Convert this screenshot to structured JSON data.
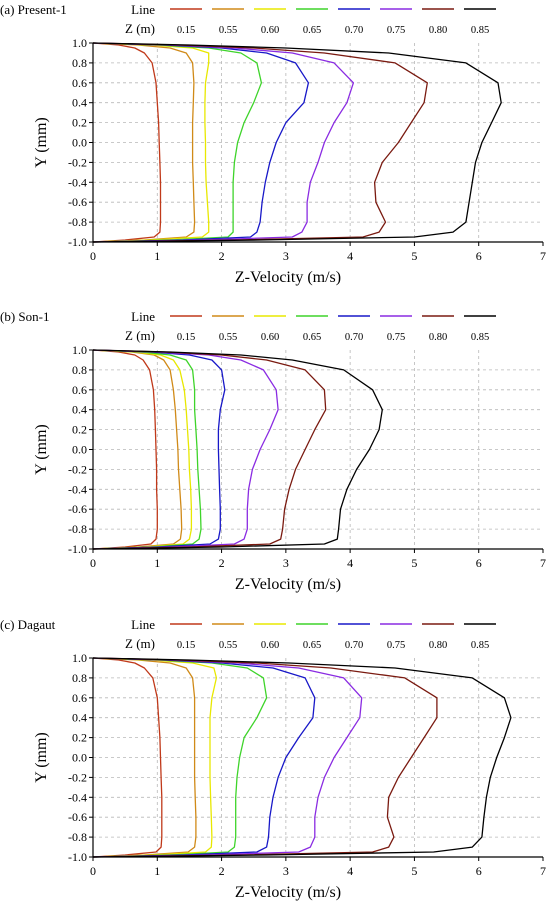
{
  "legend": {
    "line_title": "Line",
    "z_title": "Z (m)",
    "z_values": [
      "0.15",
      "0.55",
      "0.60",
      "0.65",
      "0.70",
      "0.75",
      "0.80",
      "0.85"
    ],
    "colors": [
      "#c0391a",
      "#d08a18",
      "#e8e800",
      "#3ed42a",
      "#1818c8",
      "#8a2be2",
      "#7a1a10",
      "#000000"
    ]
  },
  "chart_data": [
    {
      "panel": "(a) Present-1",
      "type": "line",
      "xlabel": "Z-Velocity (m/s)",
      "ylabel": "Y (mm)",
      "xlim": [
        0,
        7
      ],
      "ylim": [
        -1.0,
        1.0
      ],
      "x_ticks": [
        "0",
        "1",
        "2",
        "3",
        "4",
        "5",
        "6",
        "7"
      ],
      "y_ticks": [
        "1.0",
        "0.8",
        "0.6",
        "0.4",
        "0.2",
        "0.0",
        "-0.2",
        "-0.4",
        "-0.6",
        "-0.8",
        "-1.0"
      ],
      "grid": true,
      "series": [
        {
          "name": "0.15",
          "y": [
            1.0,
            0.98,
            0.95,
            0.9,
            0.8,
            0.6,
            0.4,
            0.2,
            0.0,
            -0.2,
            -0.4,
            -0.6,
            -0.8,
            -0.9,
            -0.95,
            -0.98,
            -1.0
          ],
          "x": [
            0,
            0.4,
            0.65,
            0.8,
            0.92,
            0.98,
            1.0,
            1.02,
            1.03,
            1.04,
            1.05,
            1.05,
            1.05,
            1.04,
            0.95,
            0.5,
            0
          ]
        },
        {
          "name": "0.55",
          "y": [
            1.0,
            0.98,
            0.95,
            0.9,
            0.8,
            0.6,
            0.4,
            0.2,
            0.0,
            -0.2,
            -0.4,
            -0.6,
            -0.8,
            -0.9,
            -0.95,
            -0.98,
            -1.0
          ],
          "x": [
            0,
            0.7,
            1.2,
            1.45,
            1.55,
            1.57,
            1.56,
            1.55,
            1.55,
            1.55,
            1.56,
            1.57,
            1.58,
            1.57,
            1.45,
            0.8,
            0
          ]
        },
        {
          "name": "0.60",
          "y": [
            1.0,
            0.98,
            0.95,
            0.9,
            0.8,
            0.6,
            0.4,
            0.2,
            0.0,
            -0.2,
            -0.4,
            -0.6,
            -0.8,
            -0.9,
            -0.95,
            -0.98,
            -1.0
          ],
          "x": [
            0,
            0.9,
            1.55,
            1.8,
            1.8,
            1.75,
            1.74,
            1.74,
            1.75,
            1.75,
            1.76,
            1.78,
            1.8,
            1.8,
            1.7,
            0.9,
            0
          ]
        },
        {
          "name": "0.65",
          "y": [
            1.0,
            0.98,
            0.95,
            0.9,
            0.8,
            0.6,
            0.4,
            0.2,
            0.0,
            -0.2,
            -0.4,
            -0.6,
            -0.8,
            -0.9,
            -0.95,
            -0.98,
            -1.0
          ],
          "x": [
            0,
            1.0,
            1.8,
            2.3,
            2.55,
            2.62,
            2.5,
            2.35,
            2.25,
            2.2,
            2.18,
            2.18,
            2.18,
            2.18,
            2.1,
            1.2,
            0
          ]
        },
        {
          "name": "0.70",
          "y": [
            1.0,
            0.98,
            0.95,
            0.9,
            0.8,
            0.6,
            0.4,
            0.2,
            0.0,
            -0.2,
            -0.4,
            -0.6,
            -0.8,
            -0.9,
            -0.95,
            -0.98,
            -1.0
          ],
          "x": [
            0,
            1.1,
            2.0,
            2.7,
            3.15,
            3.35,
            3.28,
            3.0,
            2.85,
            2.75,
            2.68,
            2.63,
            2.6,
            2.55,
            2.45,
            1.4,
            0
          ]
        },
        {
          "name": "0.75",
          "y": [
            1.0,
            0.98,
            0.95,
            0.9,
            0.8,
            0.6,
            0.4,
            0.2,
            0.0,
            -0.2,
            -0.4,
            -0.6,
            -0.8,
            -0.9,
            -0.95,
            -0.98,
            -1.0
          ],
          "x": [
            0,
            1.2,
            2.2,
            3.1,
            3.75,
            4.05,
            3.95,
            3.75,
            3.6,
            3.5,
            3.38,
            3.33,
            3.33,
            3.25,
            3.1,
            1.7,
            0
          ]
        },
        {
          "name": "0.80",
          "y": [
            1.0,
            0.98,
            0.95,
            0.9,
            0.8,
            0.6,
            0.4,
            0.2,
            0.0,
            -0.2,
            -0.4,
            -0.6,
            -0.8,
            -0.9,
            -0.95,
            -0.98,
            -1.0
          ],
          "x": [
            0,
            1.3,
            2.5,
            3.6,
            4.7,
            5.2,
            5.15,
            4.95,
            4.75,
            4.5,
            4.38,
            4.4,
            4.55,
            4.45,
            4.2,
            2.2,
            0
          ]
        },
        {
          "name": "0.85",
          "y": [
            1.0,
            0.98,
            0.95,
            0.9,
            0.8,
            0.6,
            0.4,
            0.2,
            0.0,
            -0.2,
            -0.4,
            -0.6,
            -0.8,
            -0.9,
            -0.95,
            -0.98,
            -1.0
          ],
          "x": [
            0,
            1.5,
            3.0,
            4.6,
            5.8,
            6.3,
            6.35,
            6.2,
            6.05,
            5.95,
            5.9,
            5.85,
            5.8,
            5.6,
            5.0,
            2.6,
            0
          ]
        }
      ]
    },
    {
      "panel": "(b) Son-1",
      "type": "line",
      "xlabel": "Z-Velocity (m/s)",
      "ylabel": "Y (mm)",
      "xlim": [
        0,
        7
      ],
      "ylim": [
        -1.0,
        1.0
      ],
      "x_ticks": [
        "0",
        "1",
        "2",
        "3",
        "4",
        "5",
        "6",
        "7"
      ],
      "y_ticks": [
        "1.0",
        "0.8",
        "0.6",
        "0.4",
        "0.2",
        "0.0",
        "-0.2",
        "-0.4",
        "-0.6",
        "-0.8",
        "-1.0"
      ],
      "grid": true,
      "series": [
        {
          "name": "0.15",
          "y": [
            1.0,
            0.98,
            0.95,
            0.9,
            0.8,
            0.6,
            0.4,
            0.2,
            0.0,
            -0.2,
            -0.4,
            -0.6,
            -0.8,
            -0.9,
            -0.95,
            -0.98,
            -1.0
          ],
          "x": [
            0,
            0.4,
            0.65,
            0.78,
            0.88,
            0.94,
            0.96,
            0.97,
            0.98,
            0.99,
            0.99,
            1.0,
            1.0,
            0.98,
            0.9,
            0.5,
            0
          ]
        },
        {
          "name": "0.55",
          "y": [
            1.0,
            0.98,
            0.95,
            0.9,
            0.8,
            0.6,
            0.4,
            0.2,
            0.0,
            -0.2,
            -0.4,
            -0.6,
            -0.8,
            -0.9,
            -0.95,
            -0.98,
            -1.0
          ],
          "x": [
            0,
            0.6,
            0.95,
            1.1,
            1.2,
            1.25,
            1.28,
            1.3,
            1.32,
            1.33,
            1.35,
            1.37,
            1.38,
            1.36,
            1.25,
            0.7,
            0
          ]
        },
        {
          "name": "0.60",
          "y": [
            1.0,
            0.98,
            0.95,
            0.9,
            0.8,
            0.6,
            0.4,
            0.2,
            0.0,
            -0.2,
            -0.4,
            -0.6,
            -0.8,
            -0.9,
            -0.95,
            -0.98,
            -1.0
          ],
          "x": [
            0,
            0.65,
            1.05,
            1.25,
            1.35,
            1.42,
            1.45,
            1.47,
            1.49,
            1.5,
            1.52,
            1.53,
            1.53,
            1.5,
            1.4,
            0.8,
            0
          ]
        },
        {
          "name": "0.65",
          "y": [
            1.0,
            0.98,
            0.95,
            0.9,
            0.8,
            0.6,
            0.4,
            0.2,
            0.0,
            -0.2,
            -0.4,
            -0.6,
            -0.8,
            -0.9,
            -0.95,
            -0.98,
            -1.0
          ],
          "x": [
            0,
            0.75,
            1.2,
            1.45,
            1.55,
            1.58,
            1.58,
            1.6,
            1.62,
            1.63,
            1.65,
            1.67,
            1.68,
            1.65,
            1.55,
            0.9,
            0
          ]
        },
        {
          "name": "0.70",
          "y": [
            1.0,
            0.98,
            0.95,
            0.9,
            0.8,
            0.6,
            0.4,
            0.2,
            0.0,
            -0.2,
            -0.4,
            -0.6,
            -0.8,
            -0.9,
            -0.95,
            -0.98,
            -1.0
          ],
          "x": [
            0,
            0.9,
            1.5,
            1.85,
            2.0,
            2.05,
            1.98,
            1.95,
            1.95,
            1.96,
            1.97,
            1.98,
            1.98,
            1.95,
            1.82,
            1.0,
            0
          ]
        },
        {
          "name": "0.75",
          "y": [
            1.0,
            0.98,
            0.95,
            0.9,
            0.8,
            0.6,
            0.4,
            0.2,
            0.0,
            -0.2,
            -0.4,
            -0.6,
            -0.8,
            -0.9,
            -0.95,
            -0.98,
            -1.0
          ],
          "x": [
            0,
            1.0,
            1.8,
            2.3,
            2.65,
            2.85,
            2.88,
            2.75,
            2.6,
            2.48,
            2.42,
            2.4,
            2.4,
            2.35,
            2.2,
            1.2,
            0
          ]
        },
        {
          "name": "0.80",
          "y": [
            1.0,
            0.98,
            0.95,
            0.9,
            0.8,
            0.6,
            0.4,
            0.2,
            0.0,
            -0.2,
            -0.4,
            -0.6,
            -0.8,
            -0.9,
            -0.95,
            -0.98,
            -1.0
          ],
          "x": [
            0,
            1.1,
            2.0,
            2.7,
            3.3,
            3.6,
            3.62,
            3.45,
            3.3,
            3.15,
            3.05,
            2.98,
            2.95,
            2.92,
            2.75,
            1.5,
            0
          ]
        },
        {
          "name": "0.85",
          "y": [
            1.0,
            0.98,
            0.95,
            0.9,
            0.8,
            0.6,
            0.4,
            0.2,
            0.0,
            -0.2,
            -0.4,
            -0.6,
            -0.8,
            -0.9,
            -0.95,
            -0.98,
            -1.0
          ],
          "x": [
            0,
            1.2,
            2.3,
            3.1,
            3.9,
            4.35,
            4.5,
            4.45,
            4.3,
            4.1,
            3.95,
            3.85,
            3.82,
            3.8,
            3.6,
            2.0,
            0
          ]
        }
      ]
    },
    {
      "panel": "(c) Dagaut",
      "type": "line",
      "xlabel": "Z-Velocity (m/s)",
      "ylabel": "Y (mm)",
      "xlim": [
        0,
        7
      ],
      "ylim": [
        -1.0,
        1.0
      ],
      "x_ticks": [
        "0",
        "1",
        "2",
        "3",
        "4",
        "5",
        "6",
        "7"
      ],
      "y_ticks": [
        "1.0",
        "0.8",
        "0.6",
        "0.4",
        "0.2",
        "0.0",
        "-0.2",
        "-0.4",
        "-0.6",
        "-0.8",
        "-1.0"
      ],
      "grid": true,
      "series": [
        {
          "name": "0.15",
          "y": [
            1.0,
            0.98,
            0.95,
            0.9,
            0.8,
            0.6,
            0.4,
            0.2,
            0.0,
            -0.2,
            -0.4,
            -0.6,
            -0.8,
            -0.9,
            -0.95,
            -0.98,
            -1.0
          ],
          "x": [
            0,
            0.4,
            0.65,
            0.8,
            0.93,
            1.0,
            1.02,
            1.04,
            1.05,
            1.06,
            1.07,
            1.07,
            1.07,
            1.06,
            0.98,
            0.5,
            0
          ]
        },
        {
          "name": "0.55",
          "y": [
            1.0,
            0.98,
            0.95,
            0.9,
            0.8,
            0.6,
            0.4,
            0.2,
            0.0,
            -0.2,
            -0.4,
            -0.6,
            -0.8,
            -0.9,
            -0.95,
            -0.98,
            -1.0
          ],
          "x": [
            0,
            0.7,
            1.2,
            1.45,
            1.55,
            1.58,
            1.58,
            1.58,
            1.58,
            1.58,
            1.59,
            1.6,
            1.6,
            1.58,
            1.48,
            0.8,
            0
          ]
        },
        {
          "name": "0.60",
          "y": [
            1.0,
            0.98,
            0.95,
            0.9,
            0.8,
            0.6,
            0.4,
            0.2,
            0.0,
            -0.2,
            -0.4,
            -0.6,
            -0.8,
            -0.9,
            -0.95,
            -0.98,
            -1.0
          ],
          "x": [
            0,
            0.9,
            1.55,
            1.88,
            1.92,
            1.85,
            1.82,
            1.82,
            1.82,
            1.82,
            1.83,
            1.84,
            1.85,
            1.84,
            1.75,
            0.95,
            0
          ]
        },
        {
          "name": "0.65",
          "y": [
            1.0,
            0.98,
            0.95,
            0.9,
            0.8,
            0.6,
            0.4,
            0.2,
            0.0,
            -0.2,
            -0.4,
            -0.6,
            -0.8,
            -0.9,
            -0.95,
            -0.98,
            -1.0
          ],
          "x": [
            0,
            1.0,
            1.85,
            2.4,
            2.65,
            2.7,
            2.55,
            2.35,
            2.28,
            2.24,
            2.22,
            2.22,
            2.22,
            2.2,
            2.1,
            1.2,
            0
          ]
        },
        {
          "name": "0.70",
          "y": [
            1.0,
            0.98,
            0.95,
            0.9,
            0.8,
            0.6,
            0.4,
            0.2,
            0.0,
            -0.2,
            -0.4,
            -0.6,
            -0.8,
            -0.9,
            -0.95,
            -0.98,
            -1.0
          ],
          "x": [
            0,
            1.1,
            2.0,
            2.8,
            3.3,
            3.45,
            3.42,
            3.2,
            3.0,
            2.88,
            2.8,
            2.75,
            2.73,
            2.7,
            2.55,
            1.4,
            0
          ]
        },
        {
          "name": "0.75",
          "y": [
            1.0,
            0.98,
            0.95,
            0.9,
            0.8,
            0.6,
            0.4,
            0.2,
            0.0,
            -0.2,
            -0.4,
            -0.6,
            -0.8,
            -0.9,
            -0.95,
            -0.98,
            -1.0
          ],
          "x": [
            0,
            1.2,
            2.25,
            3.2,
            3.9,
            4.18,
            4.15,
            3.95,
            3.75,
            3.6,
            3.5,
            3.45,
            3.45,
            3.38,
            3.2,
            1.75,
            0
          ]
        },
        {
          "name": "0.80",
          "y": [
            1.0,
            0.98,
            0.95,
            0.9,
            0.8,
            0.6,
            0.4,
            0.2,
            0.0,
            -0.2,
            -0.4,
            -0.6,
            -0.8,
            -0.9,
            -0.95,
            -0.98,
            -1.0
          ],
          "x": [
            0,
            1.3,
            2.55,
            3.7,
            4.85,
            5.35,
            5.35,
            5.15,
            4.95,
            4.75,
            4.6,
            4.58,
            4.68,
            4.6,
            4.35,
            2.3,
            0
          ]
        },
        {
          "name": "0.85",
          "y": [
            1.0,
            0.98,
            0.95,
            0.9,
            0.8,
            0.6,
            0.4,
            0.2,
            0.0,
            -0.2,
            -0.4,
            -0.6,
            -0.8,
            -0.9,
            -0.95,
            -0.98,
            -1.0
          ],
          "x": [
            0,
            1.5,
            3.05,
            4.7,
            5.9,
            6.4,
            6.5,
            6.4,
            6.28,
            6.18,
            6.12,
            6.08,
            6.05,
            5.9,
            5.3,
            2.7,
            0
          ]
        }
      ]
    }
  ]
}
